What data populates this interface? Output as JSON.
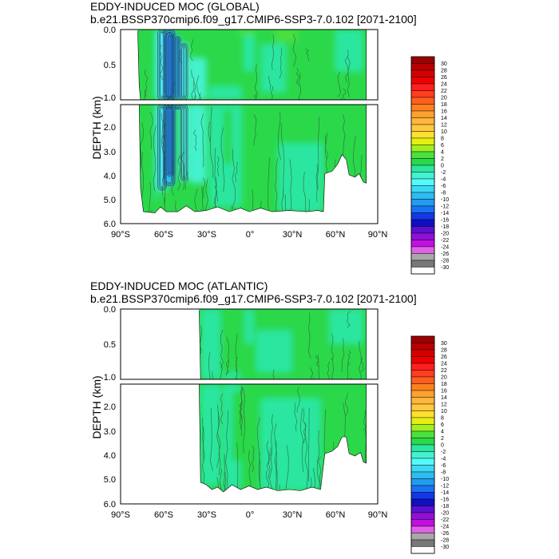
{
  "chart_data": [
    {
      "type": "heatmap",
      "title": "EDDY-INDUCED MOC (GLOBAL)",
      "subtitle": "b.e21.BSSP370cmip6.f09_g17.CMIP6-SSP3-7.0.102 [2071-2100]",
      "ylabel": "DEPTH (km)",
      "xlabel": "",
      "x_ticks": [
        "90°S",
        "60°S",
        "30°S",
        "0°",
        "30°N",
        "60°N",
        "90°N"
      ],
      "y_ticks_upper": [
        "0.0",
        "0.5",
        "1.0"
      ],
      "y_ticks_lower": [
        "2.0",
        "3.0",
        "4.0",
        "5.0",
        "6.0"
      ],
      "xlim": [
        -90,
        90
      ],
      "ylim_upper": [
        0,
        1.0
      ],
      "ylim_lower": [
        1.0,
        6.0
      ],
      "fields": [
        {
          "lat": [
            -77,
            -75
          ],
          "z": [
            0,
            5.5
          ],
          "value": 0.5
        },
        {
          "lat": [
            -75,
            -66
          ],
          "z": [
            0,
            5.5
          ],
          "value": 0.5
        },
        {
          "lat": [
            -66,
            -64
          ],
          "z": [
            0,
            5.0
          ],
          "value": -2
        },
        {
          "lat": [
            -64,
            -58
          ],
          "z": [
            0,
            4.6
          ],
          "value": -5
        },
        {
          "lat": [
            -60,
            -52
          ],
          "z": [
            0,
            4.4
          ],
          "value": -9
        },
        {
          "lat": [
            -58,
            -53
          ],
          "z": [
            0.05,
            4.0
          ],
          "value": -13
        },
        {
          "lat": [
            -52,
            -48
          ],
          "z": [
            0.1,
            1.2
          ],
          "value": -10
        },
        {
          "lat": [
            -48,
            -43
          ],
          "z": [
            0.2,
            4.2
          ],
          "value": -6
        },
        {
          "lat": [
            -42,
            -30
          ],
          "z": [
            0.4,
            4.3
          ],
          "value": -3
        },
        {
          "lat": [
            -28,
            -5
          ],
          "z": [
            0.8,
            5.3
          ],
          "value": -1
        },
        {
          "lat": [
            -4,
            4
          ],
          "z": [
            0.0,
            0.6
          ],
          "value": -2
        },
        {
          "lat": [
            8,
            26
          ],
          "z": [
            0.2,
            0.9
          ],
          "value": -1
        },
        {
          "lat": [
            18,
            34
          ],
          "z": [
            0.0,
            0.18
          ],
          "value": 2.5
        },
        {
          "lat": [
            -8,
            5
          ],
          "z": [
            0.0,
            0.08
          ],
          "value": 2.5
        },
        {
          "lat": [
            -18,
            -12
          ],
          "z": [
            1.2,
            3.5
          ],
          "value": 1.5
        },
        {
          "lat": [
            20,
            52
          ],
          "z": [
            2.6,
            5.5
          ],
          "value": -1
        },
        {
          "lat": [
            60,
            80
          ],
          "z": [
            0.0,
            0.6
          ],
          "value": -1
        }
      ],
      "bathymetry": [
        [
          -78,
          0.02
        ],
        [
          -77,
          0.8
        ],
        [
          -76,
          4.5
        ],
        [
          -74,
          5.5
        ],
        [
          -66,
          5.55
        ],
        [
          -62,
          5.3
        ],
        [
          -58,
          5.5
        ],
        [
          -50,
          5.5
        ],
        [
          -44,
          5.25
        ],
        [
          -38,
          5.5
        ],
        [
          -30,
          5.45
        ],
        [
          -22,
          5.3
        ],
        [
          -14,
          5.5
        ],
        [
          -6,
          5.35
        ],
        [
          0,
          5.5
        ],
        [
          8,
          5.35
        ],
        [
          16,
          5.5
        ],
        [
          28,
          5.45
        ],
        [
          40,
          5.5
        ],
        [
          48,
          5.45
        ],
        [
          52,
          5.5
        ],
        [
          53,
          3.9
        ],
        [
          58,
          3.8
        ],
        [
          62,
          3.5
        ],
        [
          65,
          3.1
        ],
        [
          68,
          3.3
        ],
        [
          70,
          3.95
        ],
        [
          74,
          4.05
        ],
        [
          77,
          3.9
        ],
        [
          80,
          4.25
        ],
        [
          82,
          4.3
        ],
        [
          82,
          0.0
        ]
      ],
      "colorbar": {
        "labels": [
          "30",
          "28",
          "26",
          "24",
          "22",
          "20",
          "18",
          "16",
          "14",
          "12",
          "10",
          "8",
          "6",
          "4",
          "2",
          "0",
          "-2",
          "-4",
          "-6",
          "-8",
          "-10",
          "-12",
          "-14",
          "-16",
          "-18",
          "-20",
          "-22",
          "-24",
          "-26",
          "-28",
          "-30"
        ],
        "colors": [
          "#9e0000",
          "#b90000",
          "#d40000",
          "#ee0000",
          "#ff1f1f",
          "#ff3d1f",
          "#ff5e1f",
          "#ff8020",
          "#ffa030",
          "#ffb63c",
          "#ffc840",
          "#ffe030",
          "#e6f010",
          "#a0f020",
          "#4ce03c",
          "#2bd84a",
          "#2ce6a0",
          "#44f2d0",
          "#55fafa",
          "#3cd8f4",
          "#2cbcf0",
          "#209cf0",
          "#1a72f0",
          "#1238e8",
          "#1010c0",
          "#5a10d0",
          "#9010d8",
          "#c010e0",
          "#e060e8",
          "#a8a8a8",
          "#787878",
          "#ffffff"
        ]
      }
    },
    {
      "type": "heatmap",
      "title": "EDDY-INDUCED MOC (ATLANTIC)",
      "subtitle": "b.e21.BSSP370cmip6.f09_g17.CMIP6-SSP3-7.0.102 [2071-2100]",
      "ylabel": "DEPTH (km)",
      "xlabel": "",
      "x_ticks": [
        "90°S",
        "60°S",
        "30°S",
        "0°",
        "30°N",
        "60°N",
        "90°N"
      ],
      "y_ticks_upper": [
        "0.0",
        "0.5",
        "1.0"
      ],
      "y_ticks_lower": [
        "2.0",
        "3.0",
        "4.0",
        "5.0",
        "6.0"
      ],
      "xlim": [
        -90,
        90
      ],
      "ylim_upper": [
        0,
        1.0
      ],
      "ylim_lower": [
        1.0,
        6.0
      ],
      "fields": [
        {
          "lat": [
            -34,
            53
          ],
          "z": [
            0,
            5.6
          ],
          "value": 0.5
        },
        {
          "lat": [
            -34,
            -20
          ],
          "z": [
            0.0,
            5.2
          ],
          "value": -1
        },
        {
          "lat": [
            -18,
            -6
          ],
          "z": [
            0.9,
            5.4
          ],
          "value": -1
        },
        {
          "lat": [
            -3,
            3
          ],
          "z": [
            0.0,
            0.5
          ],
          "value": -2
        },
        {
          "lat": [
            5,
            30
          ],
          "z": [
            0.3,
            0.9
          ],
          "value": -1
        },
        {
          "lat": [
            8,
            50
          ],
          "z": [
            1.6,
            5.4
          ],
          "value": -1
        },
        {
          "lat": [
            56,
            80
          ],
          "z": [
            0.0,
            0.5
          ],
          "value": -1
        },
        {
          "lat": [
            -12,
            2
          ],
          "z": [
            1.3,
            4.2
          ],
          "value": 1.5
        }
      ],
      "bathymetry": [
        [
          -35,
          0.02
        ],
        [
          -34,
          5.1
        ],
        [
          -30,
          5.2
        ],
        [
          -26,
          5.4
        ],
        [
          -22,
          5.3
        ],
        [
          -18,
          5.5
        ],
        [
          -12,
          5.2
        ],
        [
          -6,
          5.4
        ],
        [
          0,
          5.25
        ],
        [
          6,
          5.4
        ],
        [
          12,
          5.3
        ],
        [
          20,
          5.45
        ],
        [
          28,
          5.4
        ],
        [
          36,
          5.45
        ],
        [
          44,
          5.3
        ],
        [
          50,
          5.4
        ],
        [
          53,
          3.9
        ],
        [
          58,
          3.8
        ],
        [
          62,
          3.6
        ],
        [
          65,
          3.2
        ],
        [
          68,
          3.2
        ],
        [
          70,
          3.9
        ],
        [
          74,
          4.0
        ],
        [
          78,
          3.85
        ],
        [
          80,
          4.25
        ],
        [
          82,
          4.3
        ],
        [
          82,
          0.0
        ]
      ],
      "colorbar": {
        "labels": [
          "30",
          "28",
          "26",
          "24",
          "22",
          "20",
          "18",
          "16",
          "14",
          "12",
          "10",
          "8",
          "6",
          "4",
          "2",
          "0",
          "-2",
          "-4",
          "-6",
          "-8",
          "-10",
          "-12",
          "-14",
          "-16",
          "-18",
          "-20",
          "-22",
          "-24",
          "-26",
          "-28",
          "-30"
        ],
        "colors": [
          "#9e0000",
          "#b90000",
          "#d40000",
          "#ee0000",
          "#ff1f1f",
          "#ff3d1f",
          "#ff5e1f",
          "#ff8020",
          "#ffa030",
          "#ffb63c",
          "#ffc840",
          "#ffe030",
          "#e6f010",
          "#a0f020",
          "#4ce03c",
          "#2bd84a",
          "#2ce6a0",
          "#44f2d0",
          "#55fafa",
          "#3cd8f4",
          "#2cbcf0",
          "#209cf0",
          "#1a72f0",
          "#1238e8",
          "#1010c0",
          "#5a10d0",
          "#9010d8",
          "#c010e0",
          "#e060e8",
          "#a8a8a8",
          "#787878",
          "#ffffff"
        ]
      }
    }
  ]
}
